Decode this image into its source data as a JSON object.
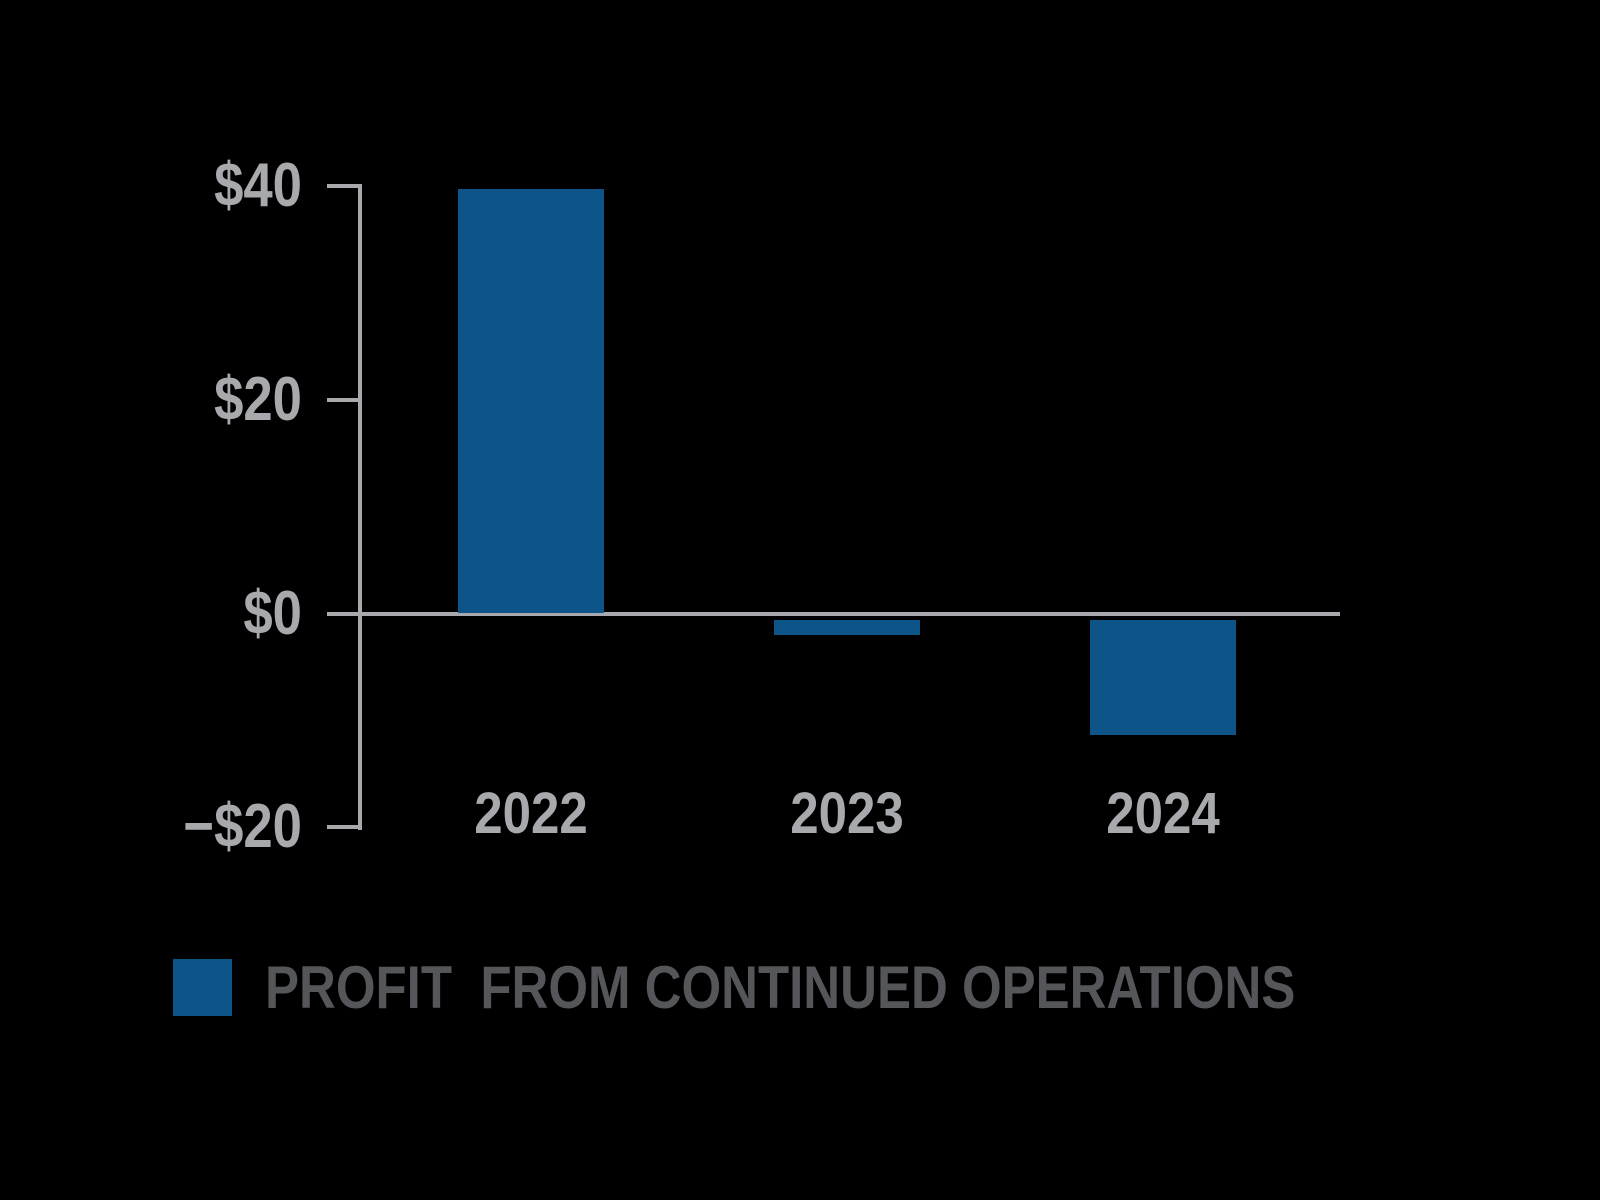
{
  "colors": {
    "background": "#000000",
    "axis": "#a7a9ac",
    "tick_label_gray": "#a7a9ac",
    "legend_text_gray": "#54565a",
    "bar": "#0d5488"
  },
  "legend": {
    "swatch": "blue-square",
    "label": "PROFIT  FROM CONTINUED OPERATIONS"
  },
  "chart_data": {
    "type": "bar",
    "title": "",
    "xlabel": "",
    "ylabel": "",
    "categories": [
      "2022",
      "2023",
      "2024"
    ],
    "series": [
      {
        "name": "PROFIT  FROM CONTINUED OPERATIONS",
        "values": [
          39.7,
          -2,
          -11.4
        ]
      }
    ],
    "values": [
      39.7,
      -2,
      -11.4
    ],
    "unit": "USD (dollars, $)",
    "ylim": [
      -20,
      40
    ],
    "y_ticks": [
      {
        "label": "$40",
        "value": 40
      },
      {
        "label": "$20",
        "value": 20
      },
      {
        "label": "$0",
        "value": 0
      },
      {
        "label": "−$20",
        "value": -20
      }
    ],
    "grid": false,
    "baseline_at_zero": true,
    "legend_position": "bottom-left",
    "bar_color": "#0d5488",
    "background_color": "#000000"
  }
}
